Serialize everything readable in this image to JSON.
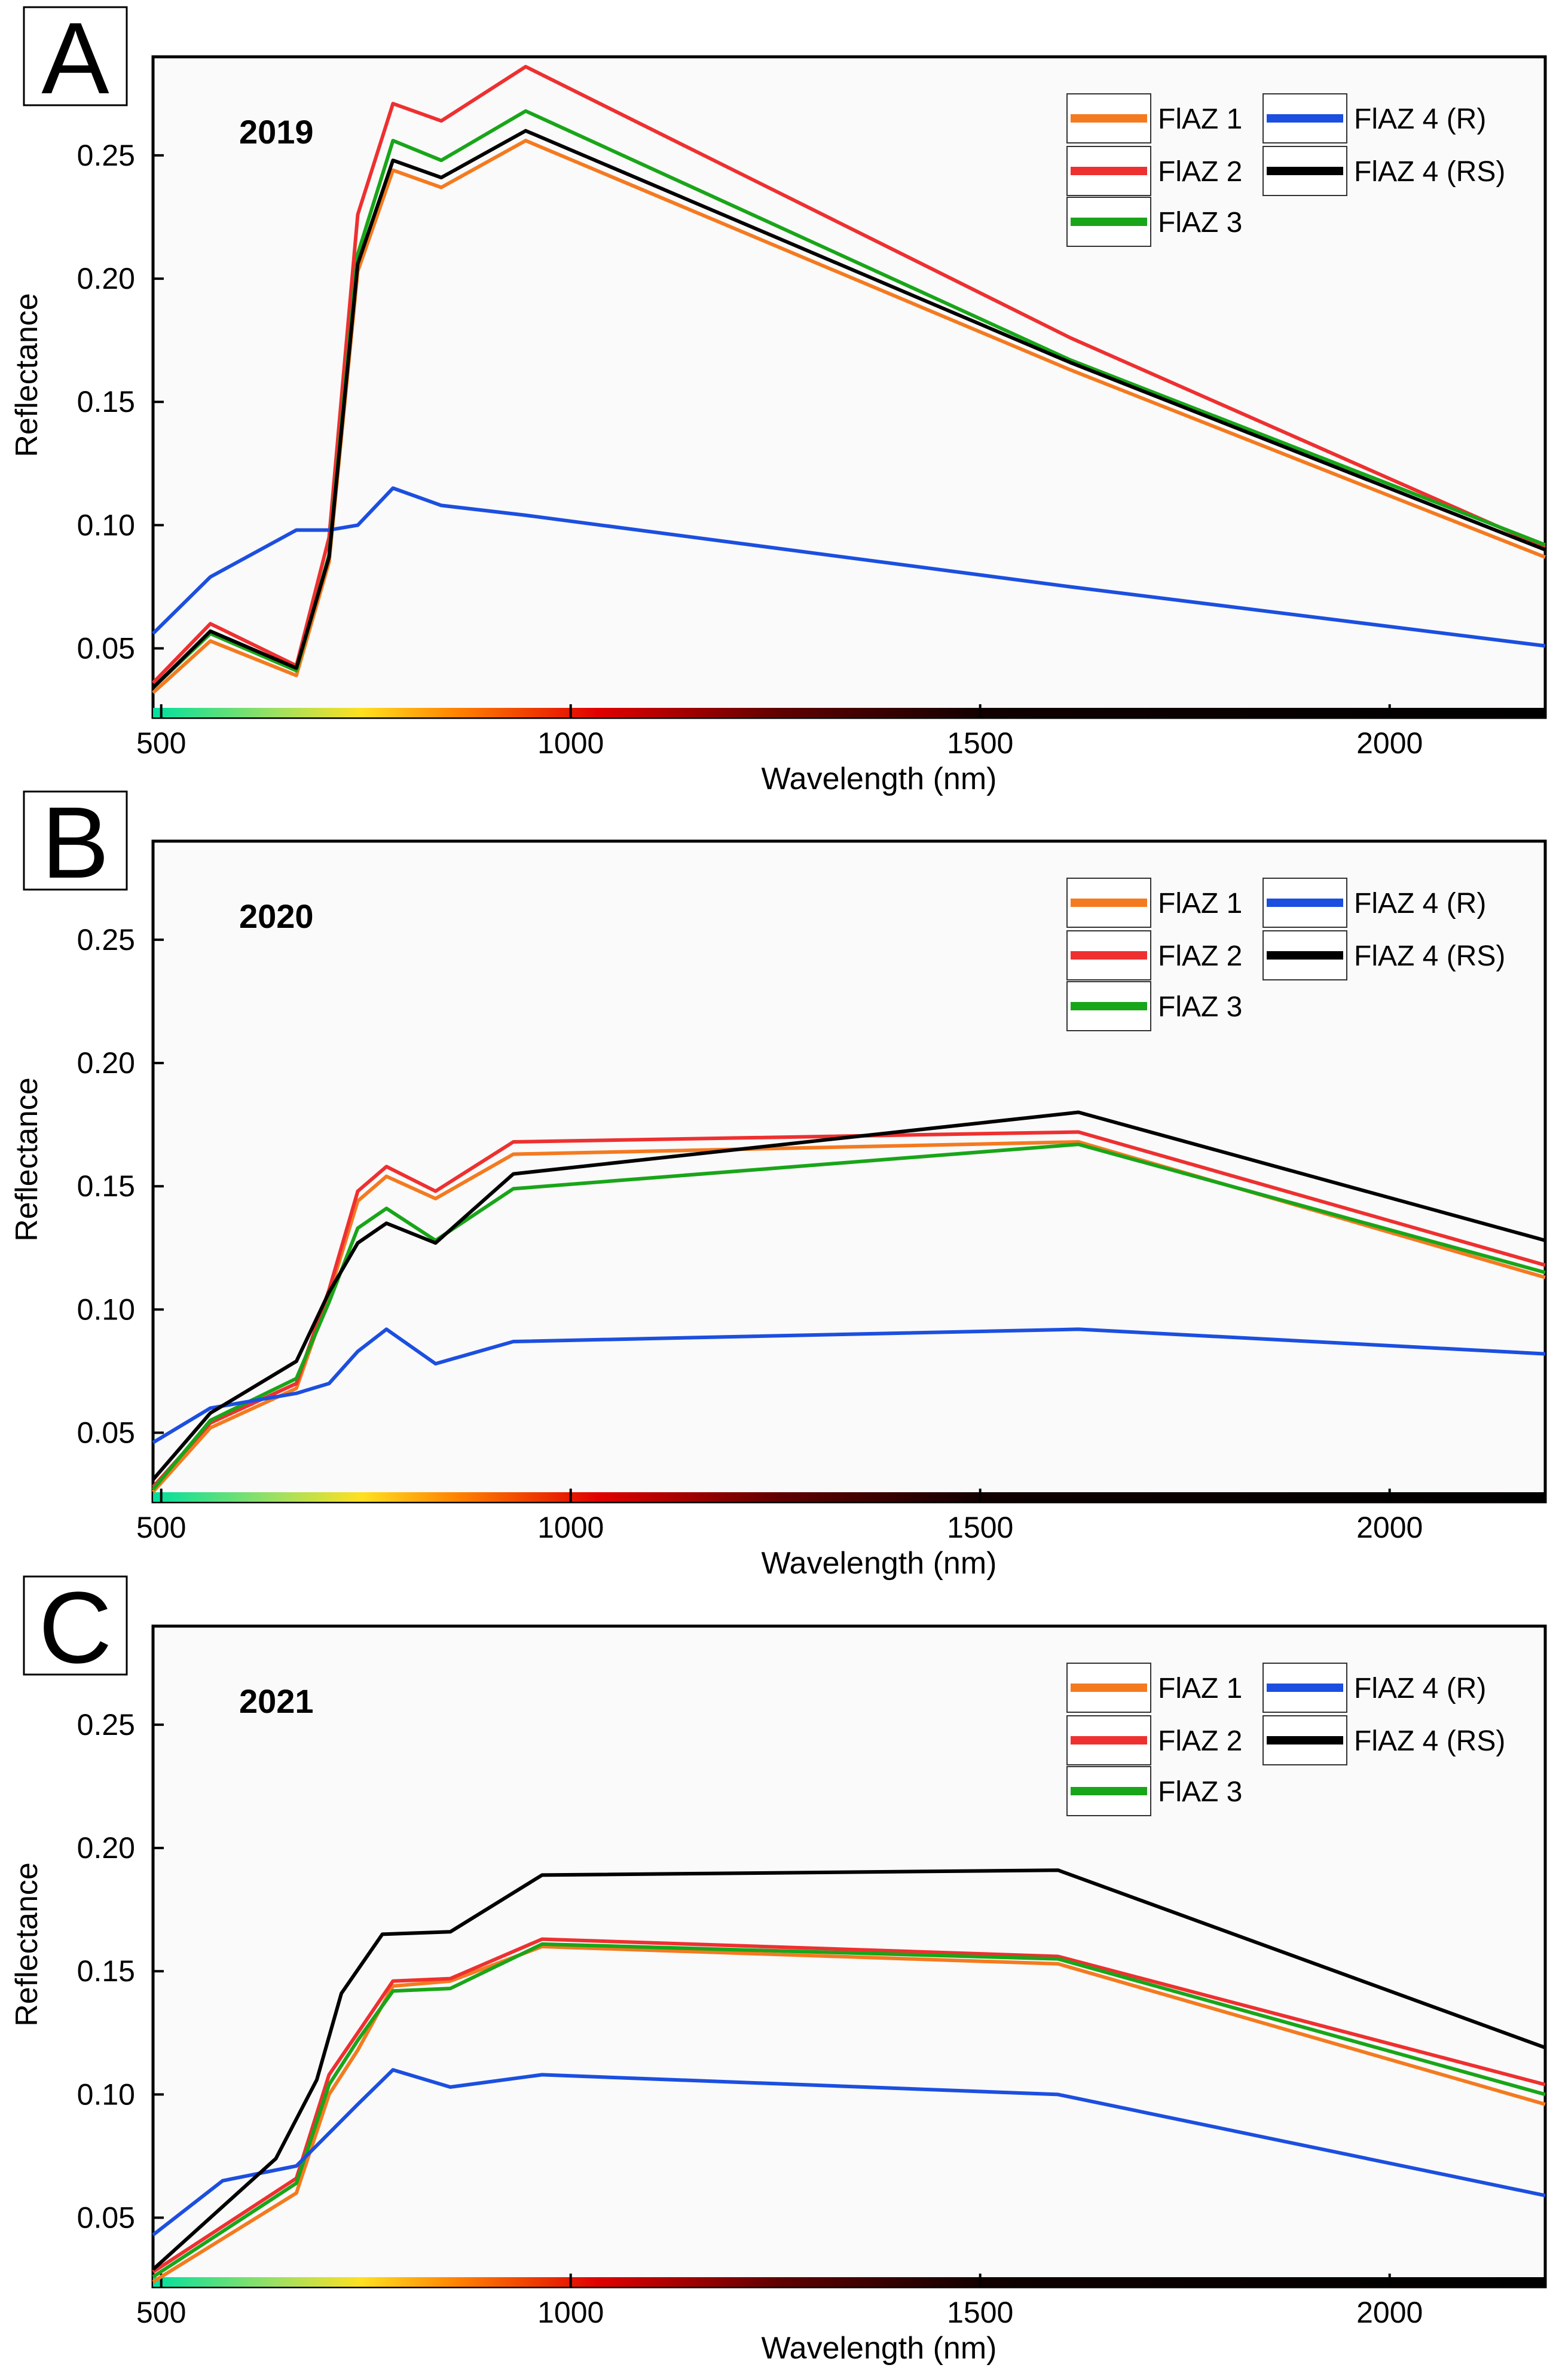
{
  "chart_data": [
    {
      "type": "line",
      "panel_label": "A",
      "year_label": "2019",
      "xlabel": "Wavelength (nm)",
      "ylabel": "Reflectance",
      "xlim": [
        490,
        2190
      ],
      "ylim": [
        0.022,
        0.29
      ],
      "xticks": [
        500,
        1000,
        1500,
        2000
      ],
      "xtick_labels": [
        "500",
        "1000",
        "1500",
        "2000"
      ],
      "yticks": [
        0.05,
        0.1,
        0.15,
        0.2,
        0.25
      ],
      "ytick_labels": [
        "0.05",
        "0.10",
        "0.15",
        "0.20",
        "0.25"
      ],
      "grid": false,
      "legend": [
        {
          "label": "FlAZ 1",
          "color": "#f47a20"
        },
        {
          "label": "FlAZ 2",
          "color": "#ee3030"
        },
        {
          "label": "FlAZ 3",
          "color": "#19a519"
        },
        {
          "label": "FlAZ 4 (R)",
          "color": "#1c4fe0"
        },
        {
          "label": "FlAZ 4 (RS)",
          "color": "#000000"
        }
      ],
      "series": [
        {
          "name": "FlAZ 1",
          "color": "#f47a20",
          "x": [
            490,
            560,
            665,
            705,
            740,
            783,
            842,
            945,
            1610,
            2190
          ],
          "y": [
            0.032,
            0.053,
            0.039,
            0.085,
            0.203,
            0.244,
            0.237,
            0.256,
            0.163,
            0.087
          ]
        },
        {
          "name": "FlAZ 2",
          "color": "#ee3030",
          "x": [
            490,
            560,
            665,
            705,
            740,
            783,
            842,
            945,
            1610,
            2190
          ],
          "y": [
            0.036,
            0.06,
            0.043,
            0.095,
            0.226,
            0.271,
            0.264,
            0.286,
            0.176,
            0.091
          ]
        },
        {
          "name": "FlAZ 3",
          "color": "#19a519",
          "x": [
            490,
            560,
            665,
            705,
            740,
            783,
            842,
            945,
            1610,
            2190
          ],
          "y": [
            0.034,
            0.056,
            0.041,
            0.088,
            0.21,
            0.256,
            0.248,
            0.268,
            0.167,
            0.092
          ]
        },
        {
          "name": "FlAZ 4 (R)",
          "color": "#1c4fe0",
          "x": [
            490,
            560,
            665,
            705,
            740,
            783,
            842,
            945,
            1610,
            2190
          ],
          "y": [
            0.056,
            0.079,
            0.098,
            0.098,
            0.1,
            0.115,
            0.108,
            0.104,
            0.075,
            0.051
          ]
        },
        {
          "name": "FlAZ 4 (RS)",
          "color": "#000000",
          "x": [
            490,
            560,
            665,
            705,
            740,
            783,
            842,
            945,
            1610,
            2190
          ],
          "y": [
            0.034,
            0.057,
            0.042,
            0.087,
            0.206,
            0.248,
            0.241,
            0.26,
            0.166,
            0.09
          ]
        }
      ]
    },
    {
      "type": "line",
      "panel_label": "B",
      "year_label": "2020",
      "xlabel": "Wavelength (nm)",
      "ylabel": "Reflectance",
      "xlim": [
        490,
        2190
      ],
      "ylim": [
        0.022,
        0.29
      ],
      "xticks": [
        500,
        1000,
        1500,
        2000
      ],
      "xtick_labels": [
        "500",
        "1000",
        "1500",
        "2000"
      ],
      "yticks": [
        0.05,
        0.1,
        0.15,
        0.2,
        0.25
      ],
      "ytick_labels": [
        "0.05",
        "0.10",
        "0.15",
        "0.20",
        "0.25"
      ],
      "grid": false,
      "legend": [
        {
          "label": "FlAZ 1",
          "color": "#f47a20"
        },
        {
          "label": "FlAZ 2",
          "color": "#ee3030"
        },
        {
          "label": "FlAZ 3",
          "color": "#19a519"
        },
        {
          "label": "FlAZ 4 (R)",
          "color": "#1c4fe0"
        },
        {
          "label": "FlAZ 4 (RS)",
          "color": "#000000"
        }
      ],
      "series": [
        {
          "name": "FlAZ 1",
          "color": "#f47a20",
          "x": [
            490,
            560,
            665,
            705,
            740,
            775,
            835,
            930,
            1620,
            2190
          ],
          "y": [
            0.026,
            0.052,
            0.068,
            0.106,
            0.144,
            0.154,
            0.145,
            0.163,
            0.168,
            0.113
          ]
        },
        {
          "name": "FlAZ 2",
          "color": "#ee3030",
          "x": [
            490,
            560,
            665,
            705,
            740,
            775,
            835,
            930,
            1620,
            2190
          ],
          "y": [
            0.028,
            0.054,
            0.07,
            0.108,
            0.148,
            0.158,
            0.148,
            0.168,
            0.172,
            0.118
          ]
        },
        {
          "name": "FlAZ 3",
          "color": "#19a519",
          "x": [
            490,
            560,
            665,
            705,
            740,
            775,
            835,
            930,
            1620,
            2190
          ],
          "y": [
            0.027,
            0.055,
            0.072,
            0.103,
            0.133,
            0.141,
            0.128,
            0.149,
            0.167,
            0.115
          ]
        },
        {
          "name": "FlAZ 4 (R)",
          "color": "#1c4fe0",
          "x": [
            490,
            560,
            665,
            705,
            740,
            775,
            835,
            930,
            1620,
            2190
          ],
          "y": [
            0.046,
            0.06,
            0.066,
            0.07,
            0.083,
            0.092,
            0.078,
            0.087,
            0.092,
            0.082
          ]
        },
        {
          "name": "FlAZ 4 (RS)",
          "color": "#000000",
          "x": [
            490,
            560,
            665,
            705,
            740,
            775,
            835,
            930,
            1620,
            2190
          ],
          "y": [
            0.031,
            0.058,
            0.079,
            0.107,
            0.127,
            0.135,
            0.127,
            0.155,
            0.18,
            0.128
          ]
        }
      ]
    },
    {
      "type": "line",
      "panel_label": "C",
      "year_label": "2021",
      "xlabel": "Wavelength (nm)",
      "ylabel": "Reflectance",
      "xlim": [
        490,
        2190
      ],
      "ylim": [
        0.022,
        0.29
      ],
      "xticks": [
        500,
        1000,
        1500,
        2000
      ],
      "xtick_labels": [
        "500",
        "1000",
        "1500",
        "2000"
      ],
      "yticks": [
        0.05,
        0.1,
        0.15,
        0.2,
        0.25
      ],
      "ytick_labels": [
        "0.05",
        "0.10",
        "0.15",
        "0.20",
        "0.25"
      ],
      "grid": false,
      "legend": [
        {
          "label": "FlAZ 1",
          "color": "#f47a20"
        },
        {
          "label": "FlAZ 2",
          "color": "#ee3030"
        },
        {
          "label": "FlAZ 3",
          "color": "#19a519"
        },
        {
          "label": "FlAZ 4 (R)",
          "color": "#1c4fe0"
        },
        {
          "label": "FlAZ 4 (RS)",
          "color": "#000000"
        }
      ],
      "series": [
        {
          "name": "FlAZ 1",
          "color": "#f47a20",
          "x": [
            490,
            665,
            705,
            740,
            783,
            853,
            965,
            1595,
            2190
          ],
          "y": [
            0.024,
            0.06,
            0.1,
            0.118,
            0.144,
            0.146,
            0.16,
            0.153,
            0.096
          ]
        },
        {
          "name": "FlAZ 2",
          "color": "#ee3030",
          "x": [
            490,
            665,
            705,
            740,
            783,
            853,
            965,
            1595,
            2190
          ],
          "y": [
            0.028,
            0.066,
            0.108,
            0.125,
            0.146,
            0.147,
            0.163,
            0.156,
            0.104
          ]
        },
        {
          "name": "FlAZ 3",
          "color": "#19a519",
          "x": [
            490,
            665,
            705,
            740,
            783,
            853,
            965,
            1595,
            2190
          ],
          "y": [
            0.026,
            0.064,
            0.104,
            0.122,
            0.142,
            0.143,
            0.161,
            0.155,
            0.1
          ]
        },
        {
          "name": "FlAZ 4 (R)",
          "color": "#1c4fe0",
          "x": [
            490,
            575,
            665,
            740,
            783,
            853,
            965,
            1595,
            2190
          ],
          "y": [
            0.043,
            0.065,
            0.071,
            0.096,
            0.11,
            0.103,
            0.108,
            0.1,
            0.059
          ]
        },
        {
          "name": "FlAZ 4 (RS)",
          "color": "#000000",
          "x": [
            490,
            640,
            690,
            720,
            770,
            853,
            965,
            1595,
            2190
          ],
          "y": [
            0.029,
            0.074,
            0.106,
            0.141,
            0.165,
            0.166,
            0.189,
            0.191,
            0.119
          ]
        }
      ]
    }
  ]
}
